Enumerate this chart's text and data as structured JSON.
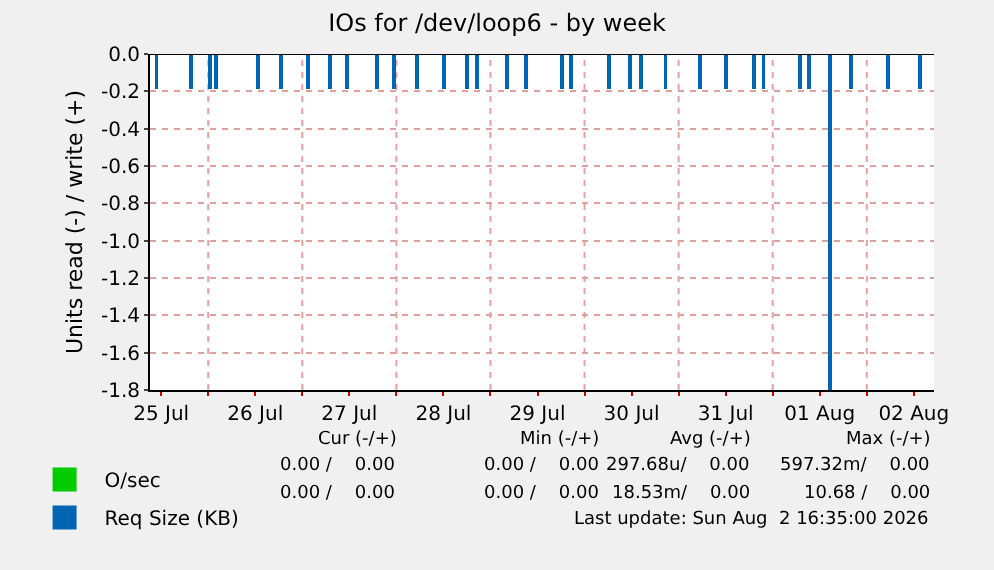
{
  "chart_data": {
    "type": "bar",
    "title": "IOs for /dev/loop6 - by week",
    "ylabel": "Units read (-) / write (+)",
    "x": [
      "2026-07-25T10:48",
      "2026-07-25T19:30",
      "2026-07-26T00:30",
      "2026-07-26T02:00",
      "2026-07-26T12:39",
      "2026-07-26T18:30",
      "2026-07-27T01:30",
      "2026-07-27T07:09",
      "2026-07-27T11:30",
      "2026-07-27T19:00",
      "2026-07-27T23:30",
      "2026-07-28T05:09",
      "2026-07-28T12:09",
      "2026-07-28T18:00",
      "2026-07-28T20:30",
      "2026-07-29T04:09",
      "2026-07-29T09:09",
      "2026-07-29T18:09",
      "2026-07-29T20:30",
      "2026-07-30T06:09",
      "2026-07-30T11:30",
      "2026-07-30T14:30",
      "2026-07-30T20:39",
      "2026-07-31T05:30",
      "2026-07-31T12:09",
      "2026-07-31T19:09",
      "2026-07-31T21:39",
      "2026-08-01T07:00",
      "2026-08-01T09:09",
      "2026-08-01T14:30",
      "2026-08-01T20:00",
      "2026-08-02T05:30",
      "2026-08-02T13:39"
    ],
    "series": [
      {
        "name": "O/sec",
        "color": "#00cc00",
        "values": [
          null,
          null,
          null,
          null,
          null,
          null,
          null,
          null,
          null,
          null,
          null,
          null,
          null,
          null,
          null,
          null,
          null,
          null,
          null,
          null,
          null,
          null,
          null,
          null,
          null,
          null,
          null,
          null,
          null,
          null,
          null,
          null,
          null
        ]
      },
      {
        "name": "Req Size (KB)",
        "color": "#0066b3",
        "values": [
          -0.19,
          -0.19,
          -0.19,
          -0.19,
          -0.19,
          -0.19,
          -0.19,
          -0.19,
          -0.19,
          -0.19,
          -0.19,
          -0.19,
          -0.19,
          -0.19,
          -0.19,
          -0.19,
          -0.19,
          -0.19,
          -0.19,
          -0.19,
          -0.19,
          -0.19,
          -0.19,
          -0.19,
          -0.19,
          -0.19,
          -0.19,
          -0.19,
          -0.19,
          -1.8,
          -0.19,
          -0.19,
          -0.19
        ]
      }
    ],
    "xlim": [
      "2026-07-25T09:09",
      "2026-08-02T17:09"
    ],
    "xticks": [
      {
        "value": "2026-07-25T12:00",
        "label": "25 Jul"
      },
      {
        "value": "2026-07-26T00:00",
        "label": null
      },
      {
        "value": "2026-07-26T12:00",
        "label": "26 Jul"
      },
      {
        "value": "2026-07-27T00:00",
        "label": null
      },
      {
        "value": "2026-07-27T12:00",
        "label": "27 Jul"
      },
      {
        "value": "2026-07-28T00:00",
        "label": null
      },
      {
        "value": "2026-07-28T12:00",
        "label": "28 Jul"
      },
      {
        "value": "2026-07-29T00:00",
        "label": null
      },
      {
        "value": "2026-07-29T12:00",
        "label": "29 Jul"
      },
      {
        "value": "2026-07-30T00:00",
        "label": null
      },
      {
        "value": "2026-07-30T12:00",
        "label": "30 Jul"
      },
      {
        "value": "2026-07-31T00:00",
        "label": null
      },
      {
        "value": "2026-07-31T12:00",
        "label": "31 Jul"
      },
      {
        "value": "2026-08-01T00:00",
        "label": null
      },
      {
        "value": "2026-08-01T12:00",
        "label": "01 Aug"
      },
      {
        "value": "2026-08-02T00:00",
        "label": null
      },
      {
        "value": "2026-08-02T12:00",
        "label": "02 Aug"
      }
    ],
    "ylim": [
      -1.8,
      0
    ],
    "yticks": [
      {
        "value": -1.8,
        "label": "-1.8"
      },
      {
        "value": -1.6,
        "label": "-1.6"
      },
      {
        "value": -1.4,
        "label": "-1.4"
      },
      {
        "value": -1.2,
        "label": "-1.2"
      },
      {
        "value": -1,
        "label": "-1.0"
      },
      {
        "value": -0.8,
        "label": "-0.8"
      },
      {
        "value": -0.6,
        "label": "-0.6"
      },
      {
        "value": -0.4,
        "label": "-0.4"
      },
      {
        "value": -0.2,
        "label": "-0.2"
      },
      {
        "value": 0,
        "label": "0.0"
      }
    ],
    "grid": true,
    "legend": "bottom left",
    "annotations": [
      "Cur (-/+)",
      "Min (-/+)",
      "Avg (-/+)",
      "Max (-/+)",
      "0.00 /    0.00",
      "0.00 /    0.00",
      "297.68u/    0.00",
      "597.32m/    0.00",
      "0.00 /    0.00",
      "0.00 /    0.00",
      "18.53m/    0.00",
      "10.68 /    0.00",
      "Last update: Sun Aug  2 16:35:00 2026"
    ]
  }
}
